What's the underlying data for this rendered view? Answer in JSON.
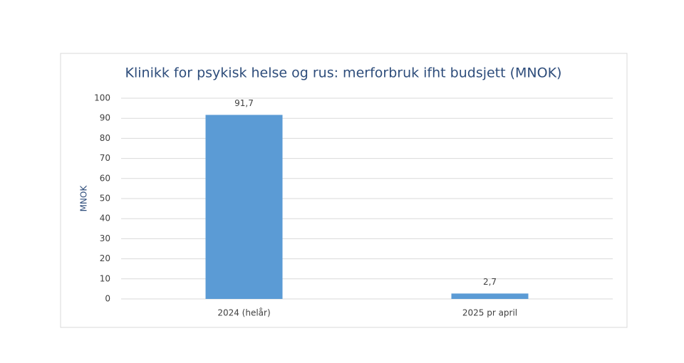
{
  "chart_data": {
    "type": "bar",
    "title": "Klinikk for psykisk helse og rus: merforbruk ifht budsjett (MNOK)",
    "y_label": "MNOK",
    "categories": [
      "2024 (helår)",
      "2025 pr april"
    ],
    "values": [
      91.7,
      2.7
    ],
    "value_labels": [
      "91,7",
      "2,7"
    ],
    "color": "#5b9bd5",
    "ylim": [
      0,
      100
    ],
    "yticks": [
      0,
      10,
      20,
      30,
      40,
      50,
      60,
      70,
      80,
      90,
      100
    ],
    "grid": true
  }
}
